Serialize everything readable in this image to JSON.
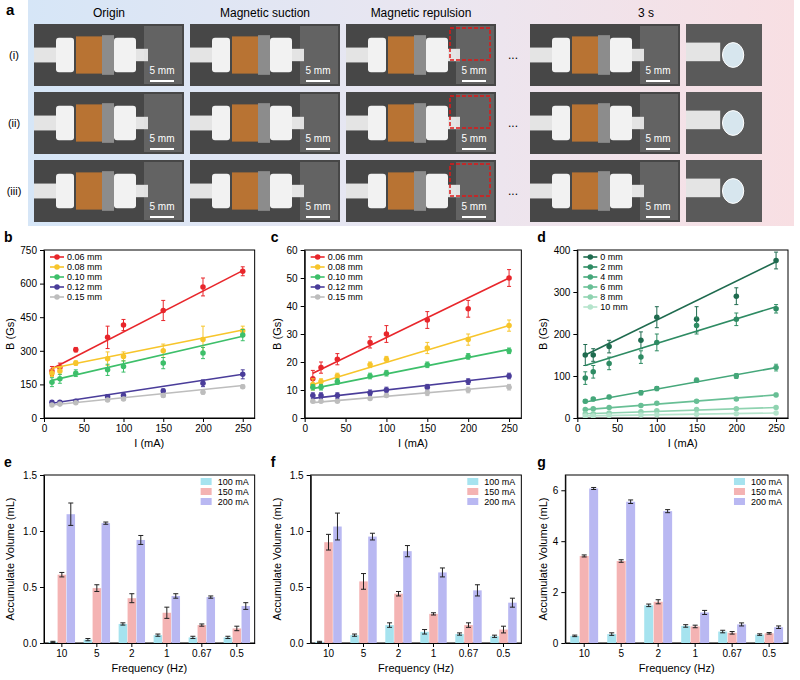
{
  "panel_a": {
    "panel_label": "a",
    "columns": [
      "Origin",
      "Magnetic suction",
      "Magnetic repulsion",
      "3 s"
    ],
    "rows": [
      "(i)",
      "(ii)",
      "(iii)"
    ],
    "scale_bar": "5 mm",
    "ellipsis": "..."
  },
  "chart_data": [
    {
      "type": "scatter",
      "panel_label": "b",
      "x_label": "I (mA)",
      "y_label": "B (Gs)",
      "marker": "circle",
      "legend": "upper left",
      "x": [
        10,
        20,
        40,
        80,
        100,
        150,
        200,
        250
      ],
      "xlim": [
        0,
        265
      ],
      "xticks": [
        0,
        50,
        100,
        150,
        200,
        250
      ],
      "ylim": [
        0,
        750
      ],
      "yticks": [
        0,
        150,
        300,
        450,
        600,
        750
      ],
      "fit_x": [
        10,
        250
      ],
      "series": [
        {
          "name": "0.06 mm",
          "color": "#e8262b",
          "values": [
            210,
            225,
            305,
            360,
            415,
            480,
            585,
            655
          ],
          "errors": [
            20,
            20,
            10,
            50,
            25,
            45,
            40,
            20
          ],
          "fit": [
            220,
            658
          ]
        },
        {
          "name": "0.08 mm",
          "color": "#f7c52b",
          "values": [
            200,
            210,
            245,
            265,
            275,
            300,
            350,
            390
          ],
          "errors": [
            15,
            15,
            10,
            30,
            20,
            30,
            60,
            20
          ],
          "fit": [
            222,
            393
          ]
        },
        {
          "name": "0.10 mm",
          "color": "#3dbf6a",
          "values": [
            160,
            175,
            200,
            215,
            230,
            245,
            290,
            370
          ],
          "errors": [
            20,
            20,
            15,
            25,
            25,
            25,
            25,
            25
          ],
          "fit": [
            168,
            365
          ]
        },
        {
          "name": "0.12 mm",
          "color": "#4a3d9a",
          "values": [
            70,
            70,
            75,
            95,
            100,
            120,
            155,
            195
          ],
          "errors": [
            8,
            8,
            8,
            10,
            10,
            10,
            15,
            20
          ],
          "fit": [
            66,
            195
          ]
        },
        {
          "name": "0.15 mm",
          "color": "#bdbdbd",
          "values": [
            58,
            62,
            68,
            80,
            85,
            100,
            115,
            140
          ],
          "errors": [
            5,
            5,
            5,
            6,
            6,
            8,
            8,
            8
          ],
          "fit": [
            58,
            145
          ]
        }
      ]
    },
    {
      "type": "scatter",
      "panel_label": "c",
      "x_label": "I (mA)",
      "y_label": "B (Gs)",
      "marker": "circle",
      "legend": "upper left",
      "x": [
        10,
        20,
        40,
        80,
        100,
        150,
        200,
        250
      ],
      "xlim": [
        0,
        265
      ],
      "xticks": [
        0,
        50,
        100,
        150,
        200,
        250
      ],
      "ylim": [
        0,
        60
      ],
      "yticks": [
        0,
        10,
        20,
        30,
        40,
        50,
        60
      ],
      "fit_x": [
        10,
        250
      ],
      "series": [
        {
          "name": "0.06 mm",
          "color": "#e8262b",
          "values": [
            14,
            18,
            21,
            27,
            30,
            35,
            39,
            50
          ],
          "errors": [
            3,
            2,
            2,
            2,
            3,
            3,
            3,
            3
          ],
          "fit": [
            16,
            50
          ]
        },
        {
          "name": "0.08 mm",
          "color": "#f7c52b",
          "values": [
            12,
            13,
            15,
            19,
            21,
            25,
            28,
            33
          ],
          "errors": [
            2,
            1,
            1,
            1,
            1,
            2,
            2,
            2
          ],
          "fit": [
            12,
            33
          ]
        },
        {
          "name": "0.10 mm",
          "color": "#3dbf6a",
          "values": [
            11,
            11,
            13,
            15,
            16,
            19,
            22,
            24
          ],
          "errors": [
            1,
            1,
            1,
            1,
            1,
            1,
            1,
            1
          ],
          "fit": [
            10.5,
            24.5
          ]
        },
        {
          "name": "0.12 mm",
          "color": "#4a3d9a",
          "values": [
            8,
            8,
            8,
            9,
            10,
            11,
            13,
            15
          ],
          "errors": [
            1,
            1,
            1,
            1,
            1,
            1,
            1,
            1
          ],
          "fit": [
            7,
            15
          ]
        },
        {
          "name": "0.15 mm",
          "color": "#bdbdbd",
          "values": [
            6,
            6,
            6,
            7,
            8,
            9,
            10,
            11
          ],
          "errors": [
            0.5,
            0.5,
            0.5,
            0.5,
            0.5,
            1,
            1,
            1
          ],
          "fit": [
            5.5,
            11.5
          ]
        }
      ]
    },
    {
      "type": "scatter",
      "panel_label": "d",
      "x_label": "I (mA)",
      "y_label": "B (Gs)",
      "marker": "circle",
      "legend": "upper left",
      "x": [
        10,
        20,
        40,
        80,
        100,
        150,
        200,
        250
      ],
      "xlim": [
        0,
        265
      ],
      "xticks": [
        0,
        50,
        100,
        150,
        200,
        250
      ],
      "ylim": [
        0,
        400
      ],
      "yticks": [
        0,
        100,
        200,
        300,
        400
      ],
      "fit_x": [
        10,
        250
      ],
      "series": [
        {
          "name": "0 mm",
          "color": "#1f6b4f",
          "values": [
            150,
            150,
            170,
            185,
            240,
            235,
            290,
            375
          ],
          "errors": [
            25,
            15,
            15,
            20,
            25,
            30,
            20,
            20
          ],
          "fit": [
            150,
            372
          ]
        },
        {
          "name": "2 mm",
          "color": "#2e8b63",
          "values": [
            95,
            110,
            130,
            145,
            180,
            220,
            235,
            260
          ],
          "errors": [
            15,
            15,
            15,
            15,
            20,
            20,
            15,
            10
          ],
          "fit": [
            125,
            265
          ]
        },
        {
          "name": "4 mm",
          "color": "#45a77a",
          "values": [
            40,
            45,
            50,
            60,
            70,
            90,
            100,
            120
          ],
          "errors": [
            4,
            4,
            4,
            5,
            5,
            5,
            6,
            8
          ],
          "fit": [
            38,
            120
          ]
        },
        {
          "name": "6 mm",
          "color": "#68bf95",
          "values": [
            20,
            22,
            25,
            30,
            35,
            40,
            45,
            55
          ],
          "errors": [
            2,
            2,
            2,
            3,
            3,
            3,
            3,
            4
          ],
          "fit": [
            20,
            55
          ]
        },
        {
          "name": "8 mm",
          "color": "#8fd3b0",
          "values": [
            10,
            10,
            12,
            15,
            17,
            20,
            22,
            25
          ],
          "errors": [
            1,
            1,
            1,
            2,
            2,
            2,
            2,
            2
          ],
          "fit": [
            10,
            25
          ]
        },
        {
          "name": "10 mm",
          "color": "#b5e4cc",
          "values": [
            5,
            5,
            6,
            7,
            8,
            9,
            10,
            12
          ],
          "errors": [
            1,
            1,
            1,
            1,
            1,
            1,
            1,
            1
          ],
          "fit": [
            5,
            12
          ]
        }
      ]
    },
    {
      "type": "bar",
      "panel_label": "e",
      "x_label": "Frequency (Hz)",
      "y_label": "Accumulate Volume (mL)",
      "legend": "upper right",
      "categories": [
        "10",
        "5",
        "2",
        "1",
        "0.67",
        "0.5"
      ],
      "ylim": [
        0,
        1.5
      ],
      "yticks": [
        {
          "value": 0,
          "label": "0.0"
        },
        0.5,
        {
          "value": 1,
          "label": "1.0"
        },
        1.5
      ],
      "series": [
        {
          "name": "100 mA",
          "color": "#a6e3ef",
          "values": [
            0.01,
            0.03,
            0.17,
            0.07,
            0.05,
            0.05
          ],
          "errors": [
            0.005,
            0.01,
            0.01,
            0.01,
            0.01,
            0.01
          ]
        },
        {
          "name": "150 mA",
          "color": "#f4b3b3",
          "values": [
            0.61,
            0.49,
            0.4,
            0.27,
            0.16,
            0.13
          ],
          "errors": [
            0.02,
            0.03,
            0.04,
            0.05,
            0.01,
            0.02
          ]
        },
        {
          "name": "200 mA",
          "color": "#b9b8f2",
          "values": [
            1.15,
            1.07,
            0.92,
            0.42,
            0.41,
            0.33
          ],
          "errors": [
            0.1,
            0.01,
            0.04,
            0.02,
            0.01,
            0.03
          ]
        }
      ]
    },
    {
      "type": "bar",
      "panel_label": "f",
      "x_label": "Frequency (Hz)",
      "y_label": "Accumulate Volume (mL)",
      "legend": "upper right",
      "categories": [
        "10",
        "5",
        "2",
        "1",
        "0.67",
        "0.5"
      ],
      "ylim": [
        0,
        1.5
      ],
      "yticks": [
        {
          "value": 0,
          "label": "0.0"
        },
        0.5,
        {
          "value": 1,
          "label": "1.0"
        },
        1.5
      ],
      "series": [
        {
          "name": "100 mA",
          "color": "#a6e3ef",
          "values": [
            0.01,
            0.07,
            0.16,
            0.1,
            0.08,
            0.06
          ],
          "errors": [
            0.005,
            0.01,
            0.02,
            0.02,
            0.01,
            0.01
          ]
        },
        {
          "name": "150 mA",
          "color": "#f4b3b3",
          "values": [
            0.9,
            0.55,
            0.44,
            0.26,
            0.16,
            0.12
          ],
          "errors": [
            0.07,
            0.07,
            0.02,
            0.01,
            0.02,
            0.03
          ]
        },
        {
          "name": "200 mA",
          "color": "#b9b8f2",
          "values": [
            1.04,
            0.95,
            0.82,
            0.63,
            0.47,
            0.36
          ],
          "errors": [
            0.12,
            0.03,
            0.05,
            0.04,
            0.05,
            0.04
          ]
        }
      ]
    },
    {
      "type": "bar",
      "panel_label": "g",
      "x_label": "Frequency (Hz)",
      "y_label": "Accumulate Volume (mL)",
      "legend": "upper right",
      "categories": [
        "10",
        "5",
        "2",
        "1",
        "0.67",
        "0.5"
      ],
      "ylim": [
        0,
        6.6
      ],
      "yticks": [
        0,
        2,
        4,
        6
      ],
      "series": [
        {
          "name": "100 mA",
          "color": "#a6e3ef",
          "values": [
            0.28,
            0.35,
            1.48,
            0.67,
            0.45,
            0.33
          ],
          "errors": [
            0.03,
            0.05,
            0.05,
            0.05,
            0.05,
            0.03
          ]
        },
        {
          "name": "150 mA",
          "color": "#f4b3b3",
          "values": [
            3.42,
            3.22,
            1.62,
            0.65,
            0.4,
            0.38
          ],
          "errors": [
            0.04,
            0.05,
            0.08,
            0.05,
            0.05,
            0.03
          ]
        },
        {
          "name": "200 mA",
          "color": "#b9b8f2",
          "values": [
            6.07,
            5.55,
            5.18,
            1.2,
            0.73,
            0.62
          ],
          "errors": [
            0.04,
            0.07,
            0.06,
            0.08,
            0.06,
            0.05
          ]
        }
      ]
    }
  ]
}
